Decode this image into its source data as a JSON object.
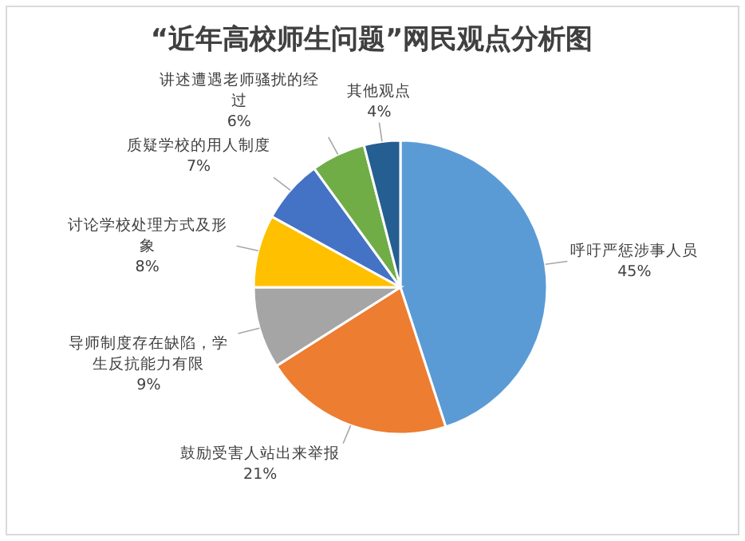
{
  "chart_data": {
    "type": "pie",
    "title": "“近年高校师生问题”网民观点分析图",
    "categories": [
      "呼吁严惩涉事人员",
      "鼓励受害人站出来举报",
      "导师制度存在缺陷，学生反抗能力有限",
      "讨论学校处理方式及形象",
      "质疑学校的用人制度",
      "讲述遭遇老师骚扰的经过",
      "其他观点"
    ],
    "values": [
      45,
      21,
      9,
      8,
      7,
      6,
      4
    ],
    "colors": [
      "#5b9bd5",
      "#ed7d31",
      "#a5a5a5",
      "#ffc000",
      "#4472c4",
      "#70ad47",
      "#255e91"
    ],
    "value_labels": [
      "45%",
      "21%",
      "9%",
      "8%",
      "7%",
      "6%",
      "4%"
    ]
  }
}
